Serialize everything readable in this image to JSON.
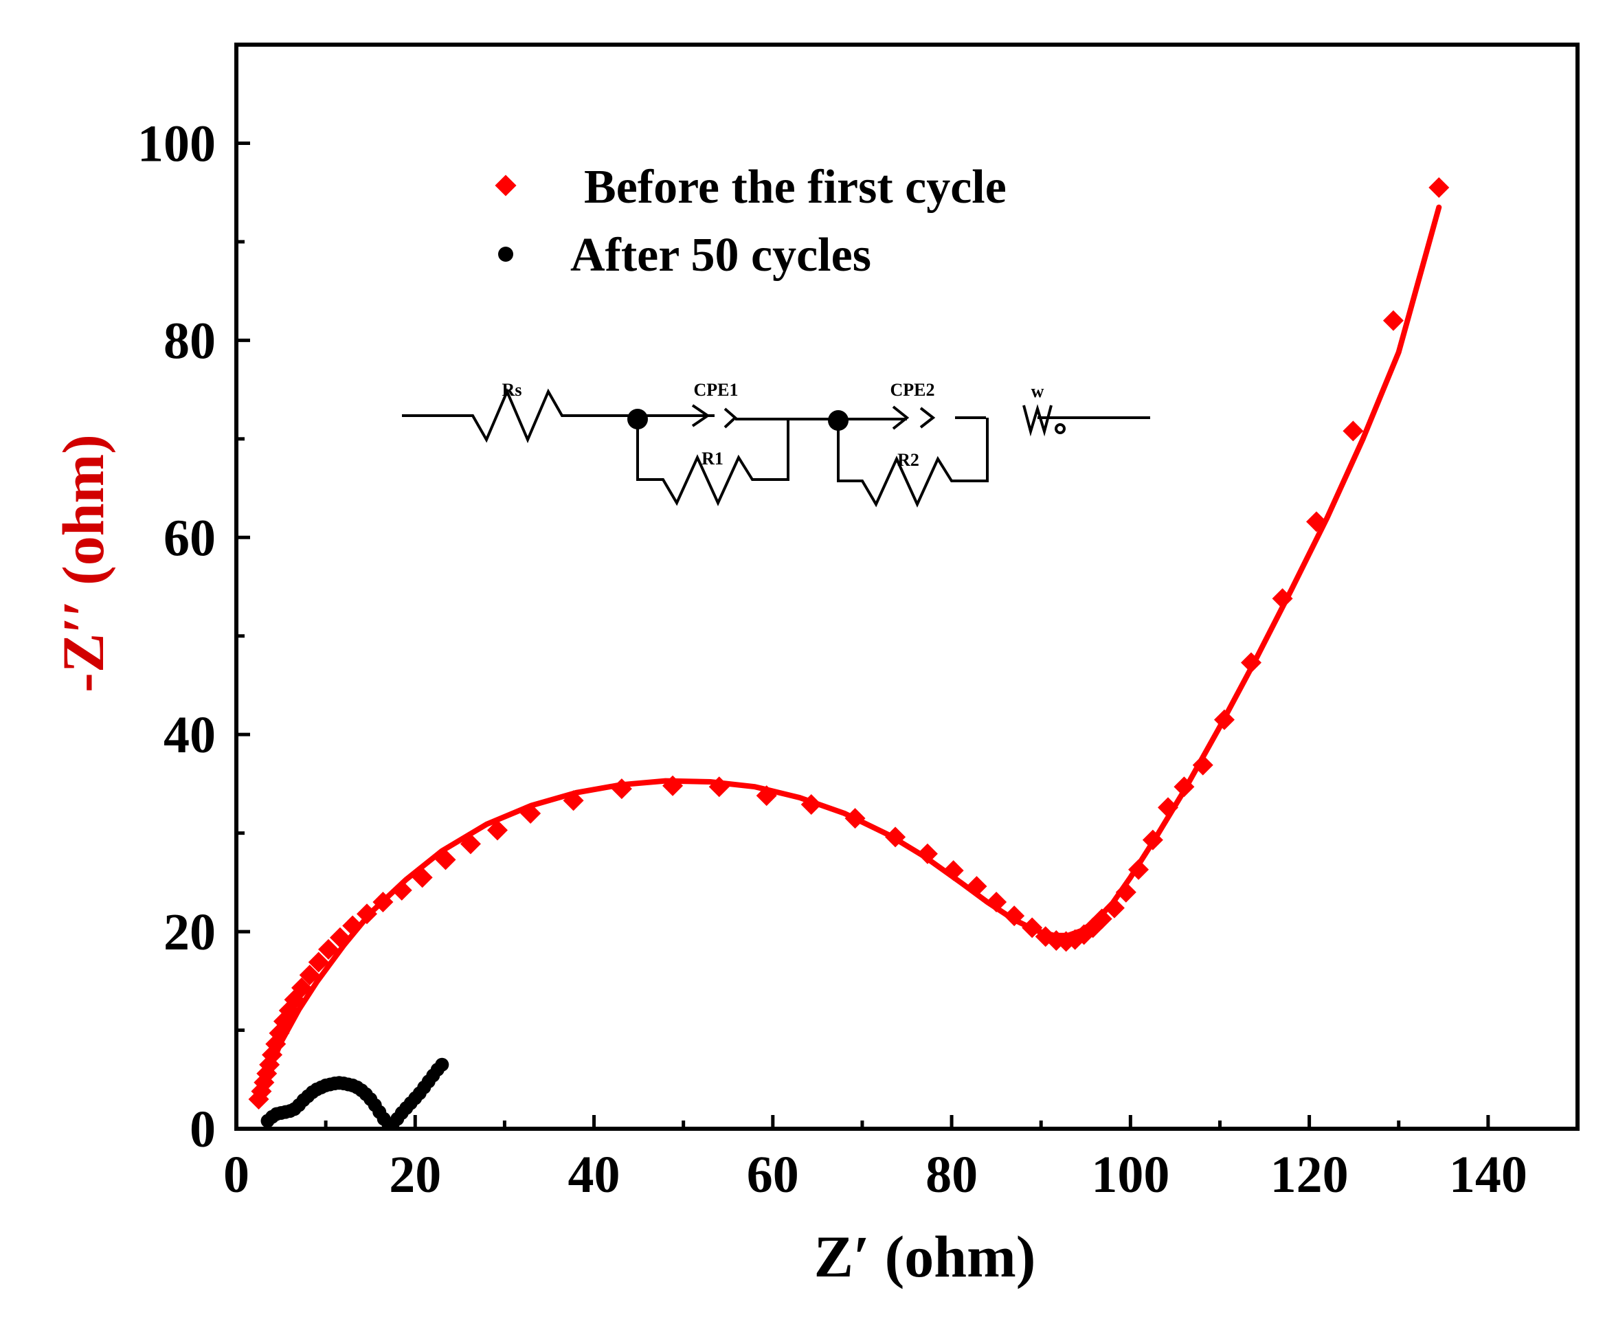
{
  "chart_data": {
    "type": "scatter",
    "xlabel": "Z′ (ohm)",
    "ylabel": "-Z′′ (ohm)",
    "xlim": [
      0,
      150
    ],
    "ylim": [
      0,
      110
    ],
    "xticks": [
      0,
      20,
      40,
      60,
      80,
      100,
      120,
      140
    ],
    "yticks": [
      0,
      20,
      40,
      60,
      80,
      100
    ],
    "xtick_labels": [
      "0",
      "20",
      "40",
      "60",
      "80",
      "100",
      "120",
      "140"
    ],
    "ytick_labels": [
      "0",
      "20",
      "40",
      "60",
      "80",
      "100"
    ],
    "legend_position": "top-center",
    "series": [
      {
        "name": "Before the first cycle",
        "marker": "diamond",
        "color": "#ff0000",
        "x": [
          2.5,
          2.8,
          3.1,
          3.4,
          3.7,
          4.0,
          4.4,
          4.8,
          5.3,
          5.9,
          6.5,
          7.3,
          8.2,
          9.2,
          10.3,
          11.6,
          13.0,
          14.6,
          16.4,
          18.5,
          20.8,
          23.4,
          26.2,
          29.2,
          32.9,
          37.7,
          43.1,
          48.8,
          54.0,
          59.3,
          64.3,
          69.2,
          73.7,
          77.3,
          80.2,
          82.8,
          85.0,
          87.0,
          89.0,
          90.5,
          91.7,
          92.8,
          93.8,
          94.8,
          95.8,
          96.8,
          98.2,
          99.5,
          100.9,
          102.5,
          104.2,
          106.0,
          108.1,
          110.5,
          113.5,
          117.0,
          120.8,
          124.9,
          129.4,
          134.5
        ],
        "y": [
          3.0,
          3.8,
          4.7,
          5.6,
          6.5,
          7.5,
          8.6,
          9.7,
          10.9,
          12.0,
          13.1,
          14.3,
          15.6,
          16.9,
          18.2,
          19.4,
          20.6,
          21.8,
          23.0,
          24.2,
          25.5,
          27.3,
          28.9,
          30.3,
          32.0,
          33.3,
          34.5,
          34.8,
          34.7,
          33.8,
          32.9,
          31.5,
          29.6,
          27.9,
          26.2,
          24.6,
          23.0,
          21.6,
          20.4,
          19.5,
          19.1,
          19.0,
          19.2,
          19.7,
          20.4,
          21.3,
          22.4,
          24.0,
          26.3,
          29.3,
          32.6,
          34.7,
          36.9,
          41.5,
          47.3,
          53.8,
          61.6,
          70.8,
          82.0,
          95.5
        ]
      },
      {
        "name": "After 50 cycles",
        "marker": "circle",
        "color": "#000000",
        "x": [
          3.5,
          4.0,
          4.5,
          5.0,
          5.5,
          6.0,
          6.5,
          7.0,
          7.5,
          8.0,
          8.5,
          9.0,
          9.5,
          10.0,
          10.5,
          11.0,
          11.5,
          12.0,
          12.5,
          13.0,
          13.5,
          14.0,
          14.5,
          15.0,
          15.5,
          16.0,
          16.5,
          17.0,
          17.5,
          18.0,
          18.5,
          19.0,
          19.5,
          20.0,
          20.5,
          21.0,
          21.5,
          22.0,
          22.5,
          23.0
        ],
        "y": [
          0.8,
          1.2,
          1.5,
          1.6,
          1.7,
          1.8,
          2.0,
          2.4,
          2.9,
          3.3,
          3.7,
          4.0,
          4.2,
          4.4,
          4.5,
          4.6,
          4.65,
          4.6,
          4.5,
          4.4,
          4.2,
          3.9,
          3.5,
          3.0,
          2.4,
          1.7,
          1.0,
          0.5,
          0.5,
          1.0,
          1.6,
          2.1,
          2.6,
          3.1,
          3.6,
          4.2,
          4.8,
          5.4,
          6.0,
          6.5
        ]
      },
      {
        "name": "",
        "marker": "line",
        "color": "#ff0000",
        "x": [
          2.5,
          3.5,
          5,
          7,
          9,
          12,
          15,
          19,
          23,
          28,
          33,
          38,
          43,
          48,
          53,
          58,
          63,
          68,
          73,
          77,
          81,
          84,
          87,
          89.5,
          91.5,
          93,
          94.5,
          96,
          98,
          100,
          103,
          106,
          110,
          114,
          118,
          122,
          126,
          130,
          134.5
        ],
        "y": [
          3.0,
          5.5,
          8.8,
          12.1,
          14.9,
          18.6,
          21.9,
          25.3,
          28.2,
          30.9,
          32.8,
          34.1,
          34.9,
          35.3,
          35.2,
          34.7,
          33.6,
          32.0,
          29.8,
          27.6,
          25.0,
          23.0,
          21.2,
          20.1,
          19.6,
          19.6,
          20.1,
          21.0,
          22.9,
          25.5,
          29.8,
          34.3,
          40.8,
          47.6,
          54.7,
          62.0,
          70.0,
          78.8,
          93.5
        ]
      }
    ],
    "inset_circuit": {
      "labels": [
        "Rs",
        "CPE1",
        "R1",
        "CPE2",
        "R2",
        "w"
      ]
    }
  }
}
